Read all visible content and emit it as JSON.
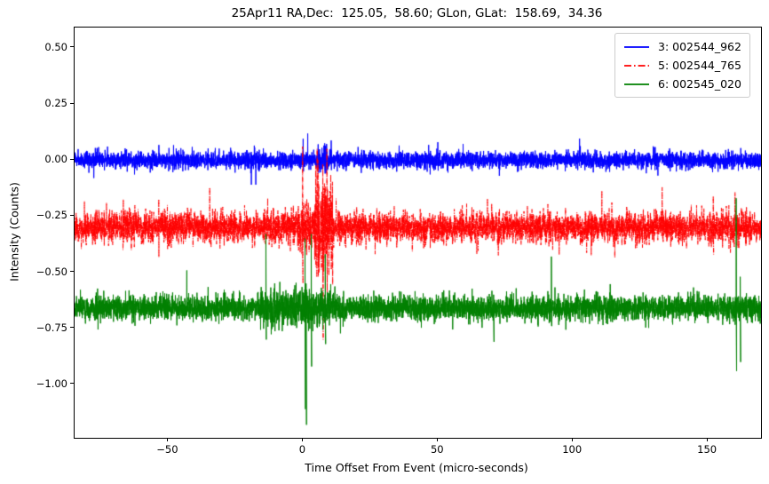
{
  "figure": {
    "background": "#ffffff",
    "spine_color": "#000000",
    "tick_color": "#000000",
    "text_color": "#000000"
  },
  "chart_data": {
    "type": "line",
    "title": "25Apr11 RA,Dec:  125.05,  58.60; GLon, GLat:  158.69,  34.36",
    "xlabel": "Time Offset From Event (micro-seconds)",
    "ylabel": "Intensity (Counts)",
    "xlim": [
      -84.7,
      169.7
    ],
    "ylim": [
      -1.238,
      0.591
    ],
    "grid": false,
    "legend": {
      "position": "upper right",
      "border_color": "#cccccc",
      "background": "#ffffff"
    },
    "xticks": {
      "values": [
        -50,
        0,
        50,
        100,
        150
      ],
      "labels": [
        "−50",
        "0",
        "50",
        "100",
        "150"
      ]
    },
    "yticks": {
      "values": [
        0.5,
        0.25,
        0.0,
        -0.25,
        -0.5,
        -0.75,
        -1.0
      ],
      "labels": [
        "0.50",
        "0.25",
        "0.00",
        "−0.25",
        "−0.50",
        "−0.75",
        "−1.00"
      ]
    },
    "series": [
      {
        "name": "3: 002544_962",
        "color": "#0000ff",
        "linestyle": "solid",
        "baseline": 0.0,
        "noise_sigma": 0.018,
        "noise_tail_prob": 0.015,
        "noise_tail_scale": 2.0,
        "bursts": [
          {
            "t0": 5.0,
            "t1": 10.5,
            "factor": 1.7
          }
        ],
        "spikes": [
          {
            "t": 0.0,
            "y_top": 0.095,
            "y_bottom": -0.05
          },
          {
            "t": 8.0,
            "y_top": 0.075,
            "y_bottom": -0.06
          }
        ]
      },
      {
        "name": "5: 002544_765",
        "color": "#ff0000",
        "linestyle": "dashdot",
        "baseline": -0.3,
        "noise_sigma": 0.034,
        "noise_tail_prob": 0.02,
        "noise_tail_scale": 2.0,
        "bursts": [
          {
            "t0": -2.0,
            "t1": 4.0,
            "factor": 1.5
          },
          {
            "t0": 4.0,
            "t1": 11.0,
            "factor": 3.2
          }
        ],
        "spikes": [
          {
            "t": -0.2,
            "y_top": 0.06,
            "y_bottom": -0.55
          },
          {
            "t": 5.5,
            "y_top": 0.0,
            "y_bottom": -0.52
          },
          {
            "t": 7.3,
            "y_top": -0.02,
            "y_bottom": -0.8
          },
          {
            "t": 8.8,
            "y_top": 0.05,
            "y_bottom": -0.62
          },
          {
            "t": 152.0,
            "y_top": -0.16,
            "y_bottom": -0.42
          }
        ]
      },
      {
        "name": "6: 002545_020",
        "color": "#008000",
        "linestyle": "solid",
        "baseline": -0.66,
        "noise_sigma": 0.027,
        "noise_tail_prob": 0.02,
        "noise_tail_scale": 2.0,
        "bursts": [
          {
            "t0": -16.0,
            "t1": 12.0,
            "factor": 1.5
          }
        ],
        "spikes": [
          {
            "t": -13.8,
            "y_top": -0.33,
            "y_bottom": -0.8
          },
          {
            "t": 0.7,
            "y_top": -0.35,
            "y_bottom": -1.11
          },
          {
            "t": 1.1,
            "y_top": -0.55,
            "y_bottom": -1.18
          },
          {
            "t": 3.0,
            "y_top": -0.33,
            "y_bottom": -0.92
          },
          {
            "t": 8.2,
            "y_top": -0.42,
            "y_bottom": -0.82
          },
          {
            "t": 70.6,
            "y_top": -0.6,
            "y_bottom": -0.81
          },
          {
            "t": 92.0,
            "y_top": -0.43,
            "y_bottom": -0.74
          },
          {
            "t": 160.5,
            "y_top": -0.17,
            "y_bottom": -0.94
          },
          {
            "t": 162.0,
            "y_top": -0.52,
            "y_bottom": -0.9
          }
        ]
      }
    ]
  }
}
